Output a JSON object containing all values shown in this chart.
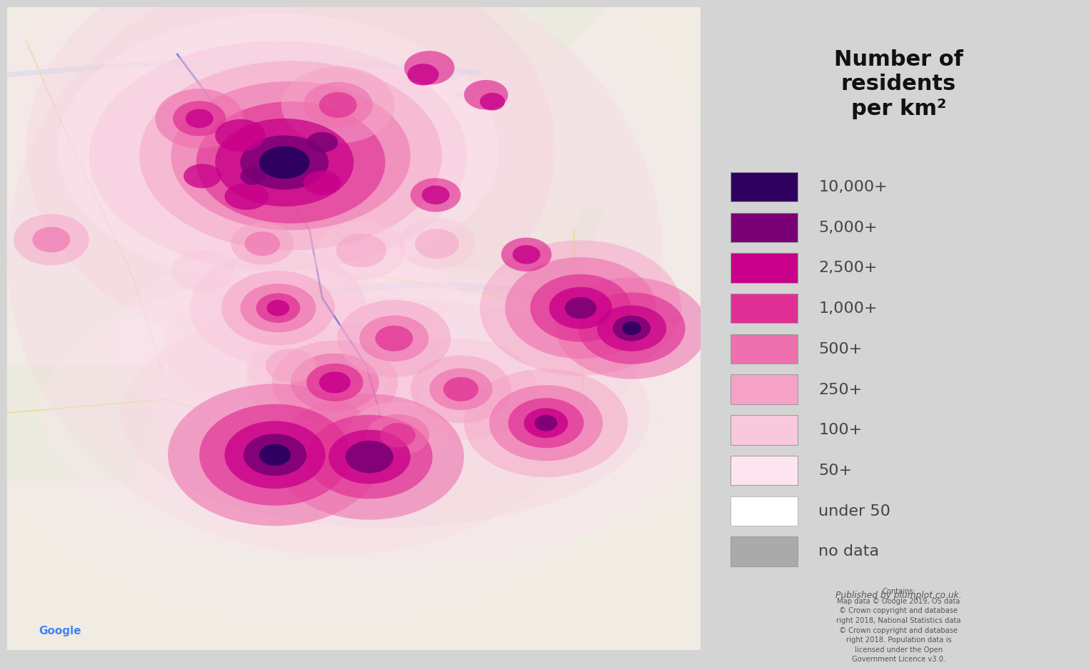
{
  "title_line1": "Number of",
  "title_line2": "residents",
  "title_line3": "per km²",
  "legend_labels": [
    "10,000+",
    "5,000+",
    "2,500+",
    "1,000+",
    "500+",
    "250+",
    "100+",
    "50+",
    "under 50",
    "no data"
  ],
  "legend_colors": [
    "#300060",
    "#7a0075",
    "#c8008a",
    "#e03095",
    "#ee70ae",
    "#f5a2c6",
    "#f8c8dc",
    "#fde5f0",
    "#ffffff",
    "#aaaaaa"
  ],
  "panel_color": "#d4d4d4",
  "text_color": "#444444",
  "title_fontsize": 22,
  "legend_fontsize": 16,
  "published_text": "Published by plumplot.co.uk.",
  "contains_text": "Contains:\nMap data © Google 2019, OS data\n© Crown copyright and database\nright 2018, National Statistics data\n© Crown copyright and database\nright 2018. Population data is\nlicensed under the Open\nGovernment Licence v3.0.",
  "map_extent": [
    -2.55,
    -1.45,
    52.3,
    53.25
  ],
  "map_bg_color": "#e8e4dc",
  "map_road_color": "#f0e8b0",
  "map_green_color": "#d8ecd0",
  "map_water_color": "#b8d8e8",
  "google_color_g": "#4285f4",
  "google_color_o": "#ea4335",
  "google_color_l": "#34a853",
  "google_color_e": "#fbbc05"
}
